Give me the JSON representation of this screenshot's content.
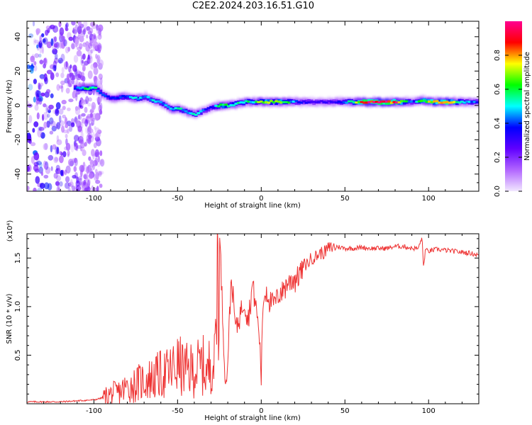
{
  "title": "C2E2.2024.203.16.51.G10",
  "chart_data": [
    {
      "type": "heatmap",
      "xlabel": "Height of straight line (km)",
      "ylabel": "Frequency (Hz)",
      "xlim": [
        -140,
        130
      ],
      "ylim": [
        -50,
        49
      ],
      "xticks": [
        -100,
        -50,
        0,
        50,
        100
      ],
      "xtick_labels": [
        "-100",
        "-50",
        "0",
        "50",
        "100"
      ],
      "yticks": [
        -40,
        -20,
        0,
        20,
        40
      ],
      "ytick_labels": [
        "-40",
        "-20",
        "0",
        "20",
        "40"
      ],
      "colorbar": {
        "label": "Normalized spectral amplitude",
        "range": [
          0,
          1
        ],
        "ticks": [
          0.0,
          0.2,
          0.4,
          0.6,
          0.8
        ],
        "tick_labels": [
          "0.0",
          "0.2",
          "0.4",
          "0.6",
          "0.8"
        ],
        "colors": [
          "#f2e8ff",
          "#b266ff",
          "#6000ff",
          "#0000ff",
          "#00ffff",
          "#00ff00",
          "#ffff00",
          "#ff0000",
          "#ff0090"
        ]
      },
      "ridge": {
        "x": [
          -112,
          -105,
          -100,
          -95,
          -90,
          -85,
          -80,
          -75,
          -70,
          -65,
          -60,
          -55,
          -50,
          -45,
          -40,
          -35,
          -30,
          -25,
          -20,
          -15,
          -10,
          -5,
          0,
          5,
          10,
          20,
          30,
          40,
          50,
          60,
          70,
          80,
          90,
          95,
          100,
          110,
          120,
          130
        ],
        "frequency": [
          10,
          10,
          10,
          6,
          4,
          5,
          5,
          4,
          5,
          3,
          1,
          -2,
          -2,
          -4,
          -5,
          -3,
          -1,
          0,
          0,
          1,
          2,
          2,
          2,
          2,
          2,
          2,
          2,
          2,
          2,
          2,
          2,
          2,
          2,
          3,
          2,
          2,
          2,
          2
        ],
        "amplitude": [
          0.45,
          0.6,
          0.5,
          0.4,
          0.35,
          0.45,
          0.4,
          0.5,
          0.45,
          0.5,
          0.45,
          0.5,
          0.5,
          0.45,
          0.5,
          0.4,
          0.35,
          0.7,
          0.5,
          0.55,
          0.6,
          0.5,
          0.75,
          0.6,
          0.75,
          0.4,
          0.3,
          0.3,
          0.45,
          0.85,
          0.95,
          0.9,
          0.35,
          0.65,
          0.75,
          0.8,
          0.5,
          0.35
        ]
      },
      "noise_region": {
        "x": [
          -140,
          -95
        ],
        "frequency": [
          -50,
          49
        ]
      }
    },
    {
      "type": "line",
      "xlabel": "Height of straight line (km)",
      "ylabel": "SNR (10 * v/v)",
      "y_multiplier": "(x10⁴)",
      "xlim": [
        -140,
        130
      ],
      "ylim": [
        0,
        1.75
      ],
      "xticks": [
        -100,
        -50,
        0,
        50,
        100
      ],
      "xtick_labels": [
        "-100",
        "-50",
        "0",
        "50",
        "100"
      ],
      "yticks": [
        0.5,
        1.0,
        1.5
      ],
      "ytick_labels": [
        "0.5",
        "1.0",
        "1.5"
      ],
      "line_color": "#ee3333",
      "series": [
        {
          "x": [
            -140,
            -120,
            -100,
            -95,
            -90,
            -85,
            -80,
            -75,
            -70,
            -65,
            -60,
            -55,
            -50,
            -45,
            -40,
            -35,
            -32,
            -30,
            -28,
            -26,
            -25,
            -24,
            -23,
            -22,
            -21,
            -20,
            -19,
            -18,
            -17,
            -16,
            -15,
            -12,
            -10,
            -8,
            -5,
            -3,
            -1,
            0,
            1,
            3,
            5,
            8,
            10,
            13,
            15,
            18,
            20,
            23,
            25,
            28,
            30,
            33,
            35,
            38,
            40,
            45,
            50,
            55,
            60,
            65,
            70,
            75,
            80,
            85,
            90,
            94,
            96,
            97,
            98,
            100,
            105,
            110,
            115,
            120,
            125,
            130
          ],
          "y": [
            0.02,
            0.02,
            0.04,
            0.06,
            0.1,
            0.12,
            0.17,
            0.2,
            0.24,
            0.26,
            0.3,
            0.32,
            0.4,
            0.34,
            0.35,
            0.4,
            0.3,
            0.5,
            0.4,
            1.5,
            1.72,
            1.45,
            0.9,
            0.5,
            0.2,
            0.5,
            0.9,
            1.3,
            1.2,
            0.9,
            0.8,
            1.0,
            1.1,
            0.9,
            1.25,
            1.0,
            0.7,
            0.3,
            1.05,
            1.2,
            1.1,
            1.05,
            1.15,
            1.2,
            1.25,
            1.3,
            1.3,
            1.38,
            1.42,
            1.45,
            1.5,
            1.52,
            1.55,
            1.56,
            1.6,
            1.62,
            1.6,
            1.6,
            1.61,
            1.6,
            1.6,
            1.6,
            1.62,
            1.62,
            1.6,
            1.6,
            1.72,
            1.4,
            1.58,
            1.57,
            1.59,
            1.58,
            1.57,
            1.56,
            1.55,
            1.53
          ]
        }
      ]
    }
  ]
}
